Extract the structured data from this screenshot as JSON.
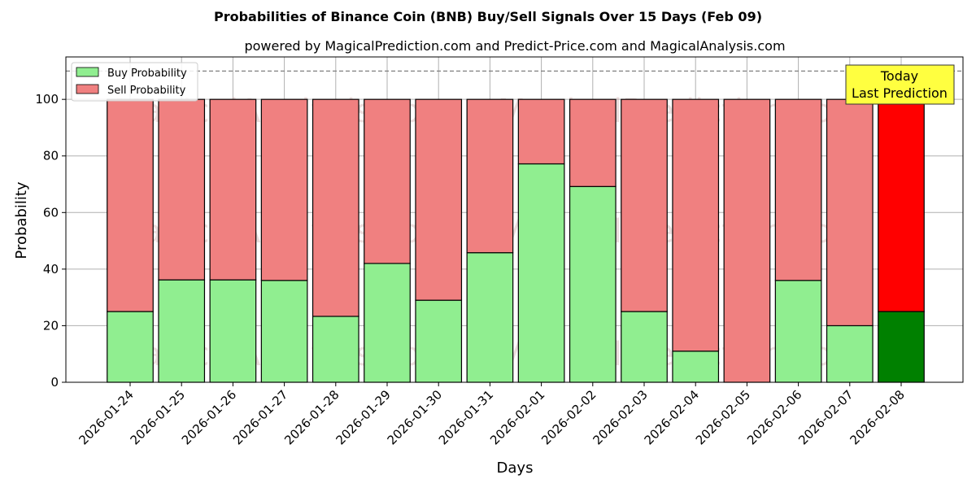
{
  "chart_data": {
    "type": "bar",
    "stacked": true,
    "title": "Probabilities of Binance Coin (BNB) Buy/Sell Signals Over 15 Days (Feb 09)",
    "subtitle": "powered by MagicalPrediction.com and Predict-Price.com and MagicalAnalysis.com",
    "xlabel": "Days",
    "ylabel": "Probability",
    "ylim": [
      0,
      115
    ],
    "yticks": [
      0,
      20,
      40,
      60,
      80,
      100
    ],
    "grid": true,
    "legend_position": "top-left",
    "reference_line": 110,
    "categories": [
      "2026-01-24",
      "2026-01-25",
      "2026-01-26",
      "2026-01-27",
      "2026-01-28",
      "2026-01-29",
      "2026-01-30",
      "2026-01-31",
      "2026-02-01",
      "2026-02-02",
      "2026-02-03",
      "2026-02-04",
      "2026-02-05",
      "2026-02-06",
      "2026-02-07",
      "2026-02-08"
    ],
    "series": [
      {
        "name": "Buy Probability",
        "color": "#90ee90",
        "highlight_color": "#008000",
        "values": [
          25,
          36.2,
          36.2,
          36,
          23.3,
          42,
          29,
          45.8,
          77.2,
          69.2,
          25,
          11,
          0,
          36,
          20,
          25
        ]
      },
      {
        "name": "Sell Probability",
        "color": "#f08080",
        "highlight_color": "#ff0000",
        "values": [
          75,
          63.8,
          63.8,
          64,
          76.7,
          58,
          71,
          54.2,
          22.8,
          30.8,
          75,
          89,
          100,
          64,
          80,
          75
        ]
      }
    ],
    "highlight_index": 15,
    "annotation": {
      "line1": "Today",
      "line2": "Last Prediction",
      "background": "#ffff40"
    },
    "watermark": [
      "MagicalAnalysis.com",
      "MagicalPrediction.com"
    ]
  }
}
